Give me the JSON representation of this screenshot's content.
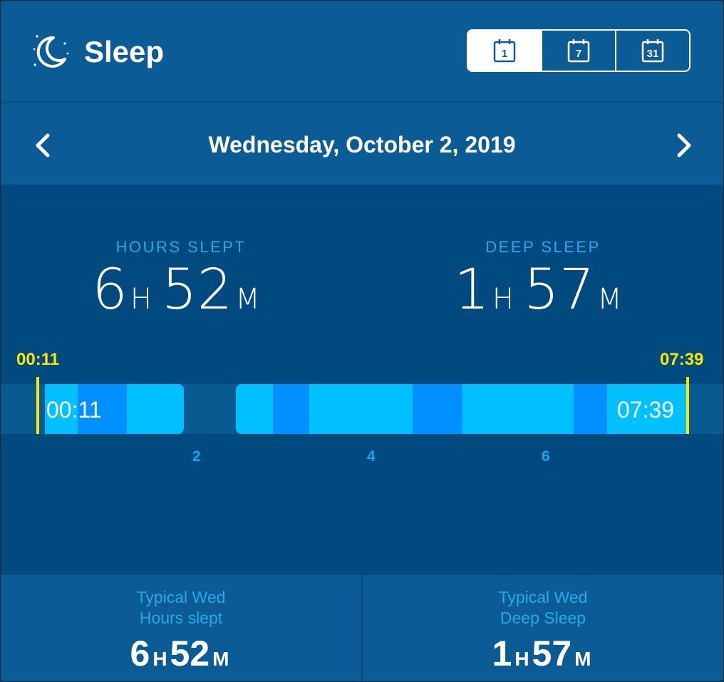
{
  "header": {
    "title": "Sleep",
    "icon": "moon-icon",
    "view_buttons": [
      {
        "label": "1",
        "icon": "calendar-day-icon",
        "active": true
      },
      {
        "label": "7",
        "icon": "calendar-week-icon",
        "active": false
      },
      {
        "label": "31",
        "icon": "calendar-month-icon",
        "active": false
      }
    ]
  },
  "date_nav": {
    "date": "Wednesday, October 2, 2019",
    "prev_icon": "chevron-left-icon",
    "next_icon": "chevron-right-icon"
  },
  "stats": {
    "hours_slept": {
      "label": "HOURS SLEPT",
      "hours": "6",
      "hours_unit": "H",
      "minutes": "52",
      "minutes_unit": "M"
    },
    "deep_sleep": {
      "label": "DEEP SLEEP",
      "hours": "1",
      "hours_unit": "H",
      "minutes": "57",
      "minutes_unit": "M"
    }
  },
  "timeline": {
    "start_marker": "00:11",
    "end_marker": "07:39",
    "bar_start": "00:11",
    "bar_end": "07:39",
    "hour_ticks": [
      "2",
      "4",
      "6"
    ],
    "colors": {
      "light": "#00c0ff",
      "deep": "#0090ff",
      "track": "#0a5a92",
      "marker": "#ffe600"
    }
  },
  "footer": {
    "typical_hours": {
      "line1": "Typical Wed",
      "line2": "Hours slept",
      "hours": "6",
      "hours_unit": "H",
      "minutes": "52",
      "minutes_unit": "M"
    },
    "typical_deep": {
      "line1": "Typical Wed",
      "line2": "Deep Sleep",
      "hours": "1",
      "hours_unit": "H",
      "minutes": "57",
      "minutes_unit": "M"
    }
  }
}
